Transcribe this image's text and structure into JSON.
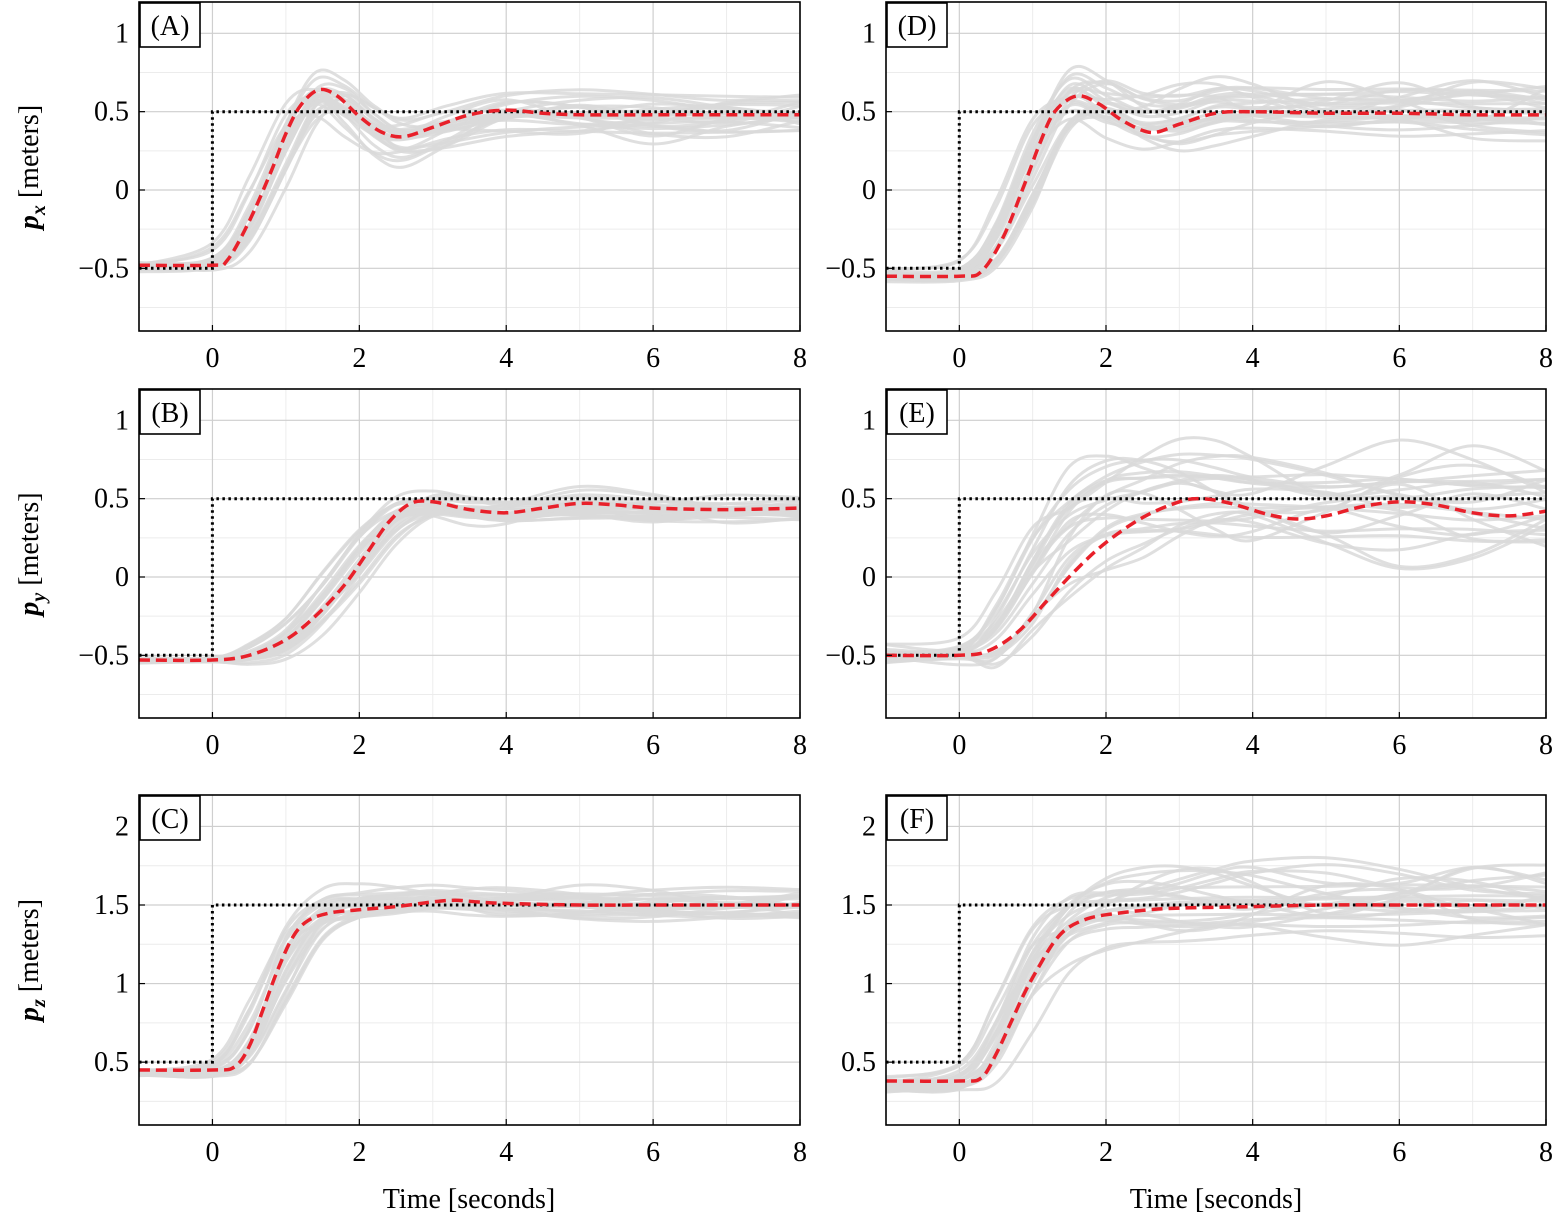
{
  "figure": {
    "xlabel": "Time [seconds]",
    "row_ylabels": [
      {
        "var": "p",
        "sub": "x",
        "unit": " [meters]"
      },
      {
        "var": "p",
        "sub": "y",
        "unit": " [meters]"
      },
      {
        "var": "p",
        "sub": "z",
        "unit": " [meters]"
      }
    ],
    "colors": {
      "reference": "#000000",
      "mean": "#e8202a",
      "trials": "#d9d9d9",
      "grid_major": "#cfcfcf",
      "grid_minor": "#ececec"
    },
    "legend": "none",
    "grid": true
  },
  "chart_data": [
    {
      "panel": "(A)",
      "type": "line",
      "title": "",
      "xlim": [
        -1,
        8
      ],
      "ylim": [
        -0.9,
        1.2
      ],
      "xticks": [
        0,
        2,
        4,
        6,
        8
      ],
      "yticks": [
        -0.5,
        0,
        0.5,
        1
      ],
      "ytick_labels": [
        "−0.5",
        "0",
        "0.5",
        "1"
      ],
      "reference": {
        "x": [
          -1,
          0,
          0,
          8
        ],
        "y": [
          -0.5,
          -0.5,
          0.5,
          0.5
        ]
      },
      "mean": {
        "x": [
          -1,
          0,
          0.2,
          0.5,
          0.8,
          1.0,
          1.2,
          1.45,
          1.7,
          2.0,
          2.3,
          2.6,
          3.0,
          3.5,
          4.0,
          4.5,
          5,
          6,
          7,
          8
        ],
        "y": [
          -0.48,
          -0.48,
          -0.45,
          -0.2,
          0.12,
          0.36,
          0.54,
          0.64,
          0.6,
          0.47,
          0.37,
          0.34,
          0.4,
          0.48,
          0.51,
          0.49,
          0.48,
          0.48,
          0.48,
          0.48
        ]
      },
      "trials": {
        "x": [
          -1,
          0,
          0.5,
          1.0,
          1.4,
          1.8,
          2.2,
          2.6,
          3.2,
          4,
          5,
          6,
          7,
          8
        ],
        "centerline": [
          -0.48,
          -0.48,
          -0.2,
          0.36,
          0.64,
          0.55,
          0.4,
          0.34,
          0.43,
          0.5,
          0.49,
          0.49,
          0.49,
          0.49
        ],
        "count": 24,
        "spread": 0.12
      }
    },
    {
      "panel": "(D)",
      "type": "line",
      "title": "",
      "xlim": [
        -1,
        8
      ],
      "ylim": [
        -0.9,
        1.2
      ],
      "xticks": [
        0,
        2,
        4,
        6,
        8
      ],
      "yticks": [
        -0.5,
        0,
        0.5,
        1
      ],
      "ytick_labels": [
        "−0.5",
        "0",
        "0.5",
        "1"
      ],
      "reference": {
        "x": [
          -1,
          0,
          0,
          8
        ],
        "y": [
          -0.5,
          -0.5,
          0.5,
          0.5
        ]
      },
      "mean": {
        "x": [
          -1,
          0,
          0.3,
          0.6,
          0.9,
          1.1,
          1.3,
          1.6,
          1.9,
          2.2,
          2.5,
          2.7,
          3.0,
          3.5,
          4,
          5,
          6,
          7,
          8
        ],
        "y": [
          -0.55,
          -0.55,
          -0.52,
          -0.3,
          0.05,
          0.3,
          0.5,
          0.6,
          0.55,
          0.45,
          0.38,
          0.37,
          0.42,
          0.49,
          0.5,
          0.49,
          0.49,
          0.48,
          0.48
        ]
      },
      "trials": {
        "x": [
          -1,
          0,
          0.5,
          1.0,
          1.5,
          2.0,
          2.5,
          3.0,
          3.5,
          4,
          5,
          6,
          7,
          8
        ],
        "centerline": [
          -0.55,
          -0.55,
          -0.35,
          0.2,
          0.6,
          0.5,
          0.4,
          0.42,
          0.5,
          0.5,
          0.49,
          0.49,
          0.48,
          0.48
        ],
        "count": 24,
        "spread": 0.16
      }
    },
    {
      "panel": "(B)",
      "type": "line",
      "title": "",
      "xlim": [
        -1,
        8
      ],
      "ylim": [
        -0.9,
        1.2
      ],
      "xticks": [
        0,
        2,
        4,
        6,
        8
      ],
      "yticks": [
        -0.5,
        0,
        0.5,
        1
      ],
      "ytick_labels": [
        "−0.5",
        "0",
        "0.5",
        "1"
      ],
      "reference": {
        "x": [
          -1,
          0,
          0,
          8
        ],
        "y": [
          -0.5,
          -0.5,
          0.5,
          0.5
        ]
      },
      "mean": {
        "x": [
          -1,
          0,
          0.5,
          1.0,
          1.4,
          1.8,
          2.1,
          2.4,
          2.7,
          3.0,
          3.5,
          4.0,
          4.5,
          5.0,
          5.5,
          6.0,
          7.0,
          8.0
        ],
        "y": [
          -0.53,
          -0.53,
          -0.5,
          -0.4,
          -0.25,
          -0.05,
          0.15,
          0.35,
          0.47,
          0.48,
          0.43,
          0.41,
          0.44,
          0.47,
          0.46,
          0.44,
          0.43,
          0.44
        ]
      },
      "trials": {
        "x": [
          -1,
          0,
          0.5,
          1.0,
          1.5,
          2.0,
          2.5,
          3.0,
          3.5,
          4,
          5,
          6,
          7,
          8
        ],
        "centerline": [
          -0.53,
          -0.53,
          -0.5,
          -0.42,
          -0.2,
          0.1,
          0.4,
          0.48,
          0.44,
          0.42,
          0.46,
          0.44,
          0.44,
          0.44
        ],
        "count": 24,
        "spread": 0.08
      }
    },
    {
      "panel": "(E)",
      "type": "line",
      "title": "",
      "xlim": [
        -1,
        8
      ],
      "ylim": [
        -0.9,
        1.2
      ],
      "xticks": [
        0,
        2,
        4,
        6,
        8
      ],
      "yticks": [
        -0.5,
        0,
        0.5,
        1
      ],
      "ytick_labels": [
        "−0.5",
        "0",
        "0.5",
        "1"
      ],
      "reference": {
        "x": [
          -1,
          0,
          0,
          8
        ],
        "y": [
          -0.5,
          -0.5,
          0.5,
          0.5
        ]
      },
      "mean": {
        "x": [
          -1,
          0,
          0.4,
          0.8,
          1.2,
          1.6,
          2.0,
          2.5,
          3.0,
          3.3,
          3.7,
          4.2,
          4.6,
          5.0,
          5.5,
          6.0,
          6.5,
          7.0,
          7.5,
          8.0
        ],
        "y": [
          -0.5,
          -0.5,
          -0.47,
          -0.35,
          -0.15,
          0.05,
          0.22,
          0.38,
          0.48,
          0.5,
          0.47,
          0.4,
          0.37,
          0.39,
          0.45,
          0.48,
          0.46,
          0.41,
          0.39,
          0.42
        ]
      },
      "trials": {
        "x": [
          -1,
          0,
          0.5,
          1.0,
          1.5,
          2.0,
          2.5,
          3.0,
          3.5,
          4,
          5,
          6,
          7,
          8
        ],
        "centerline": [
          -0.5,
          -0.5,
          -0.42,
          -0.05,
          0.3,
          0.45,
          0.48,
          0.5,
          0.48,
          0.45,
          0.45,
          0.47,
          0.43,
          0.42
        ],
        "count": 24,
        "spread": 0.25
      }
    },
    {
      "panel": "(C)",
      "type": "line",
      "title": "",
      "xlim": [
        -1,
        8
      ],
      "ylim": [
        0.1,
        2.2
      ],
      "xticks": [
        0,
        2,
        4,
        6,
        8
      ],
      "yticks": [
        0.5,
        1,
        1.5,
        2
      ],
      "ytick_labels": [
        "0.5",
        "1",
        "1.5",
        "2"
      ],
      "reference": {
        "x": [
          -1,
          0,
          0,
          8
        ],
        "y": [
          0.5,
          0.5,
          1.5,
          1.5
        ]
      },
      "mean": {
        "x": [
          -1,
          0,
          0.3,
          0.5,
          0.7,
          0.9,
          1.1,
          1.3,
          1.6,
          2.0,
          2.5,
          3.0,
          3.3,
          3.6,
          4.0,
          5,
          6,
          7,
          8
        ],
        "y": [
          0.45,
          0.45,
          0.47,
          0.6,
          0.85,
          1.1,
          1.3,
          1.4,
          1.45,
          1.47,
          1.49,
          1.52,
          1.53,
          1.52,
          1.51,
          1.5,
          1.5,
          1.5,
          1.5
        ]
      },
      "trials": {
        "x": [
          -1,
          0,
          0.5,
          1.0,
          1.5,
          2.0,
          2.5,
          3.0,
          3.5,
          4,
          5,
          6,
          7,
          8
        ],
        "centerline": [
          0.43,
          0.43,
          0.6,
          1.2,
          1.46,
          1.5,
          1.52,
          1.54,
          1.52,
          1.51,
          1.5,
          1.5,
          1.5,
          1.5
        ],
        "count": 24,
        "spread": 0.08
      }
    },
    {
      "panel": "(F)",
      "type": "line",
      "title": "",
      "xlim": [
        -1,
        8
      ],
      "ylim": [
        0.1,
        2.2
      ],
      "xticks": [
        0,
        2,
        4,
        6,
        8
      ],
      "yticks": [
        0.5,
        1,
        1.5,
        2
      ],
      "ytick_labels": [
        "0.5",
        "1",
        "1.5",
        "2"
      ],
      "reference": {
        "x": [
          -1,
          0,
          0,
          8
        ],
        "y": [
          0.5,
          0.5,
          1.5,
          1.5
        ]
      },
      "mean": {
        "x": [
          -1,
          0,
          0.3,
          0.5,
          0.7,
          0.9,
          1.1,
          1.3,
          1.5,
          1.8,
          2.2,
          2.6,
          3.0,
          4,
          5,
          6,
          7,
          8
        ],
        "y": [
          0.38,
          0.38,
          0.4,
          0.55,
          0.75,
          0.95,
          1.12,
          1.27,
          1.36,
          1.42,
          1.45,
          1.47,
          1.48,
          1.49,
          1.5,
          1.5,
          1.5,
          1.5
        ]
      },
      "trials": {
        "x": [
          -1,
          0,
          0.5,
          1.0,
          1.5,
          2.0,
          2.5,
          3.0,
          3.5,
          4,
          5,
          6,
          7,
          8
        ],
        "centerline": [
          0.35,
          0.35,
          0.55,
          1.05,
          1.35,
          1.45,
          1.47,
          1.48,
          1.49,
          1.5,
          1.5,
          1.5,
          1.5,
          1.5
        ],
        "count": 24,
        "spread": 0.2
      }
    }
  ]
}
